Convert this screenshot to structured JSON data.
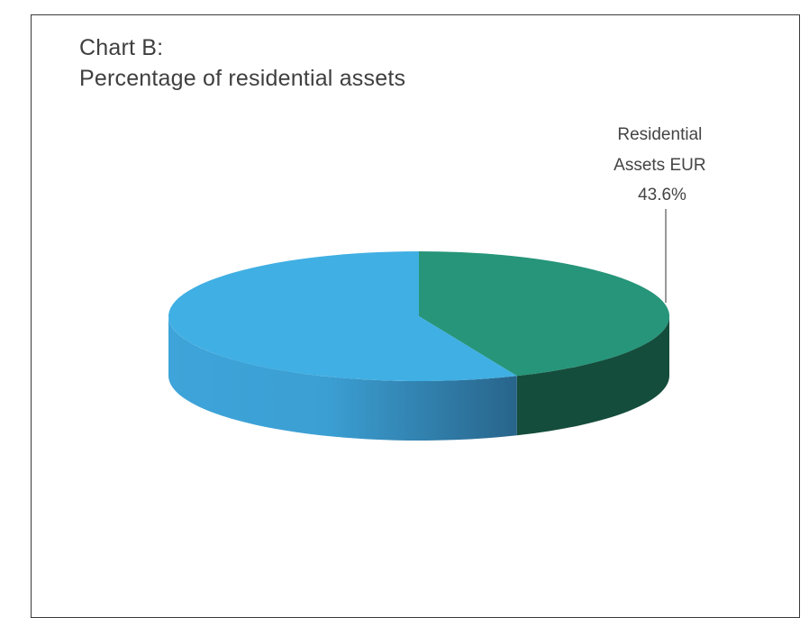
{
  "title": {
    "line1": "Chart B:",
    "line2": "Percentage of residential assets"
  },
  "chart_data": {
    "type": "pie",
    "style": "3d-tilted",
    "slices": [
      {
        "label": "Residential Assets EUR",
        "value": 43.6,
        "display": "43.6%",
        "color": "#26957a",
        "side_color": "#154d3c"
      },
      {
        "label": "",
        "value": 56.4,
        "display": "",
        "color": "#40afe3",
        "side_color": "#2f6c92"
      }
    ],
    "data_labels": [
      {
        "lines": [
          "Residential",
          "Assets EUR",
          "43.6%"
        ]
      }
    ]
  }
}
